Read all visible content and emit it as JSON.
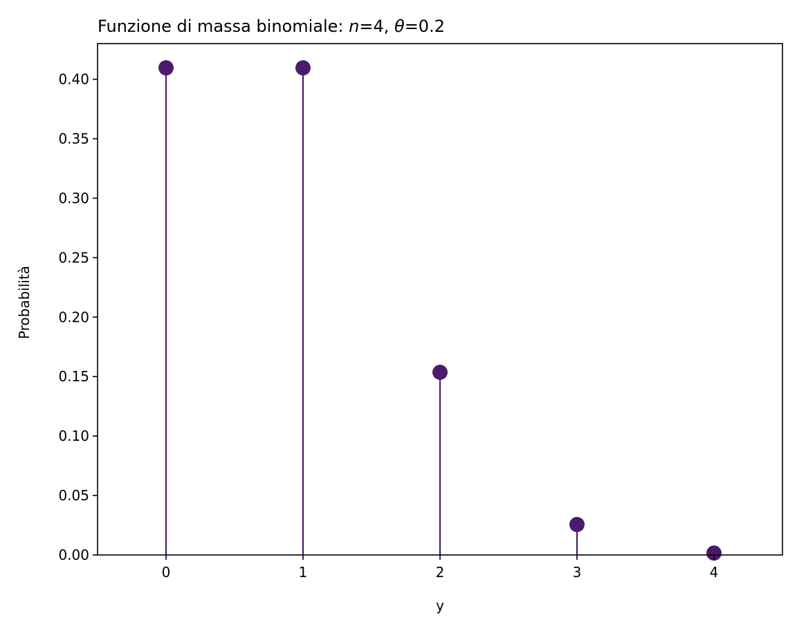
{
  "chart_data": {
    "type": "stem",
    "title": {
      "prefix": "Funzione di massa binomiale: ",
      "n_symbol": "n",
      "n_eq": "=4, ",
      "theta_symbol": "θ",
      "theta_eq": "=0.2"
    },
    "xlabel": "y",
    "ylabel": "Probabilità",
    "x": [
      0,
      1,
      2,
      3,
      4
    ],
    "values": [
      0.4096,
      0.4096,
      0.1536,
      0.0256,
      0.0016
    ],
    "xlim": [
      -0.5,
      4.5
    ],
    "ylim": [
      0,
      0.43
    ],
    "xticks": [
      "0",
      "1",
      "2",
      "3",
      "4"
    ],
    "yticks": [
      "0.00",
      "0.05",
      "0.10",
      "0.15",
      "0.20",
      "0.25",
      "0.30",
      "0.35",
      "0.40"
    ],
    "grid": false,
    "colors": {
      "marker": "#4a1b6d",
      "stem": "#4a1b6d",
      "axes": "#000000"
    }
  }
}
